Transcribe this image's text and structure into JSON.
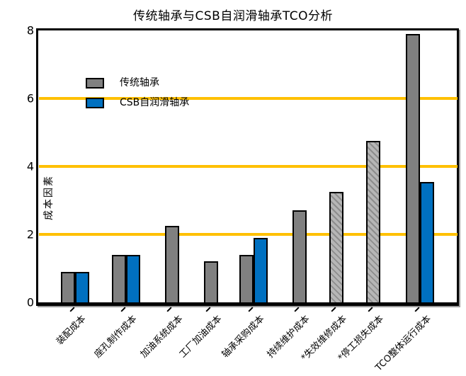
{
  "chart_data": {
    "type": "bar",
    "title": "传统轴承与CSB自润滑轴承TCO分析",
    "ylabel": "成本因素",
    "xlabel": "",
    "ylim": [
      0,
      8
    ],
    "yticks": [
      0,
      2,
      4,
      6,
      8
    ],
    "gridlines_at": [
      2,
      4,
      6
    ],
    "grid_color": "#FFC000",
    "bar_edge_color": "#000000",
    "legend_position": "upper-left",
    "categories": [
      "装配成本",
      "座孔制作成本",
      "加油系统成本",
      "工厂加油成本",
      "轴承采购成本",
      "持续维护成本",
      "*失效维修成本",
      "*停工损失成本",
      "TCO整体运行成本"
    ],
    "series": [
      {
        "name": "传统轴承",
        "color": "#808080",
        "values": [
          0.9,
          1.4,
          2.25,
          1.2,
          1.4,
          2.7,
          3.25,
          4.75,
          7.9
        ],
        "hatched": [
          false,
          false,
          false,
          false,
          false,
          false,
          true,
          true,
          false
        ]
      },
      {
        "name": "CSB自润滑轴承",
        "color": "#0070C0",
        "values": [
          0.9,
          1.4,
          null,
          null,
          1.9,
          null,
          null,
          null,
          3.55
        ],
        "hatched": [
          false,
          false,
          false,
          false,
          false,
          false,
          false,
          false,
          false
        ]
      }
    ]
  }
}
